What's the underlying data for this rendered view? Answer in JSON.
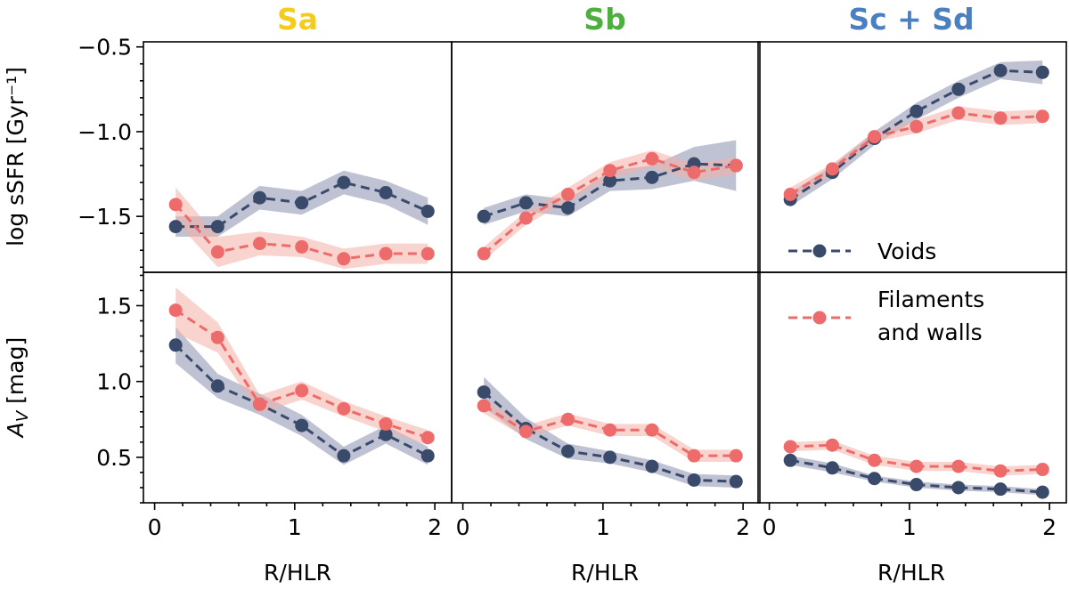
{
  "colors": {
    "voids": "#3a4a6b",
    "voids_band": "#8a90ad",
    "filaments": "#ee6b6b",
    "filaments_band": "#f4b0a8",
    "Sa": "#f6cc1a",
    "Sb": "#4caf3e",
    "Sc_Sd": "#4a7fc1"
  },
  "columns": [
    "Sa",
    "Sb",
    "Sc + Sd"
  ],
  "row_labels": {
    "top": "log sSFR [Gyr⁻¹]",
    "bottom_main": "A",
    "bottom_sub": "V",
    "bottom_unit": " [mag]"
  },
  "xlabel": "R/HLR",
  "legend": {
    "voids": "Voids",
    "filaments_line1": "Filaments",
    "filaments_line2": "and walls"
  },
  "chart_data": {
    "type": "line",
    "x": [
      0.15,
      0.45,
      0.75,
      1.05,
      1.35,
      1.65,
      1.95
    ],
    "xlim": [
      -0.08,
      2.12
    ],
    "xticks": [
      0,
      1,
      2
    ],
    "xlabel": "R/HLR",
    "legend_position": "right",
    "rows": [
      {
        "ylabel": "log sSFR [Gyr⁻¹]",
        "ylim": [
          -1.83,
          -0.47
        ],
        "yticks": [
          -0.5,
          -1.0,
          -1.5
        ],
        "yticklabels": [
          "−0.5",
          "−1.0",
          "−1.5"
        ],
        "panels": [
          {
            "title": "Sa",
            "series": [
              {
                "name": "Voids",
                "values": [
                  -1.56,
                  -1.56,
                  -1.39,
                  -1.42,
                  -1.3,
                  -1.36,
                  -1.47
                ],
                "err": [
                  0.06,
                  0.06,
                  0.07,
                  0.07,
                  0.07,
                  0.07,
                  0.08
                ]
              },
              {
                "name": "Filaments and walls",
                "values": [
                  -1.43,
                  -1.71,
                  -1.66,
                  -1.68,
                  -1.75,
                  -1.72,
                  -1.72
                ],
                "err": [
                  0.1,
                  0.09,
                  0.07,
                  0.06,
                  0.06,
                  0.06,
                  0.06
                ]
              }
            ]
          },
          {
            "title": "Sb",
            "series": [
              {
                "name": "Voids",
                "values": [
                  -1.5,
                  -1.42,
                  -1.45,
                  -1.29,
                  -1.27,
                  -1.19,
                  -1.2
                ],
                "err": [
                  0.05,
                  0.05,
                  0.05,
                  0.06,
                  0.07,
                  0.1,
                  0.15
                ]
              },
              {
                "name": "Filaments and walls",
                "values": [
                  -1.72,
                  -1.51,
                  -1.37,
                  -1.23,
                  -1.16,
                  -1.24,
                  -1.2
                ],
                "err": [
                  0.04,
                  0.04,
                  0.04,
                  0.05,
                  0.05,
                  0.05,
                  0.05
                ]
              }
            ]
          },
          {
            "title": "Sc + Sd",
            "series": [
              {
                "name": "Voids",
                "values": [
                  -1.4,
                  -1.24,
                  -1.04,
                  -0.88,
                  -0.75,
                  -0.64,
                  -0.65
                ],
                "err": [
                  0.04,
                  0.04,
                  0.04,
                  0.05,
                  0.05,
                  0.05,
                  0.07
                ]
              },
              {
                "name": "Filaments and walls",
                "values": [
                  -1.37,
                  -1.22,
                  -1.03,
                  -0.97,
                  -0.89,
                  -0.92,
                  -0.91
                ],
                "err": [
                  0.04,
                  0.03,
                  0.03,
                  0.04,
                  0.04,
                  0.04,
                  0.04
                ]
              }
            ]
          }
        ]
      },
      {
        "ylabel": "A_V [mag]",
        "ylim": [
          0.2,
          1.72
        ],
        "yticks": [
          0.5,
          1.0,
          1.5
        ],
        "yticklabels": [
          "0.5",
          "1.0",
          "1.5"
        ],
        "panels": [
          {
            "title": "Sa",
            "series": [
              {
                "name": "Voids",
                "values": [
                  1.24,
                  0.97,
                  0.85,
                  0.71,
                  0.51,
                  0.65,
                  0.51
                ],
                "err": [
                  0.12,
                  0.08,
                  0.07,
                  0.07,
                  0.06,
                  0.06,
                  0.06
                ]
              },
              {
                "name": "Filaments and walls",
                "values": [
                  1.47,
                  1.29,
                  0.85,
                  0.94,
                  0.82,
                  0.72,
                  0.63
                ],
                "err": [
                  0.15,
                  0.1,
                  0.06,
                  0.06,
                  0.05,
                  0.05,
                  0.05
                ]
              }
            ]
          },
          {
            "title": "Sb",
            "series": [
              {
                "name": "Voids",
                "values": [
                  0.93,
                  0.69,
                  0.54,
                  0.5,
                  0.44,
                  0.35,
                  0.34
                ],
                "err": [
                  0.1,
                  0.07,
                  0.05,
                  0.04,
                  0.04,
                  0.04,
                  0.04
                ]
              },
              {
                "name": "Filaments and walls",
                "values": [
                  0.84,
                  0.67,
                  0.75,
                  0.68,
                  0.68,
                  0.51,
                  0.51
                ],
                "err": [
                  0.05,
                  0.04,
                  0.04,
                  0.04,
                  0.04,
                  0.04,
                  0.04
                ]
              }
            ]
          },
          {
            "title": "Sc + Sd",
            "series": [
              {
                "name": "Voids",
                "values": [
                  0.48,
                  0.43,
                  0.36,
                  0.32,
                  0.3,
                  0.29,
                  0.27
                ],
                "err": [
                  0.03,
                  0.03,
                  0.02,
                  0.02,
                  0.02,
                  0.02,
                  0.02
                ]
              },
              {
                "name": "Filaments and walls",
                "values": [
                  0.57,
                  0.58,
                  0.48,
                  0.44,
                  0.44,
                  0.41,
                  0.42
                ],
                "err": [
                  0.03,
                  0.03,
                  0.03,
                  0.03,
                  0.03,
                  0.03,
                  0.03
                ]
              }
            ]
          }
        ]
      }
    ]
  }
}
